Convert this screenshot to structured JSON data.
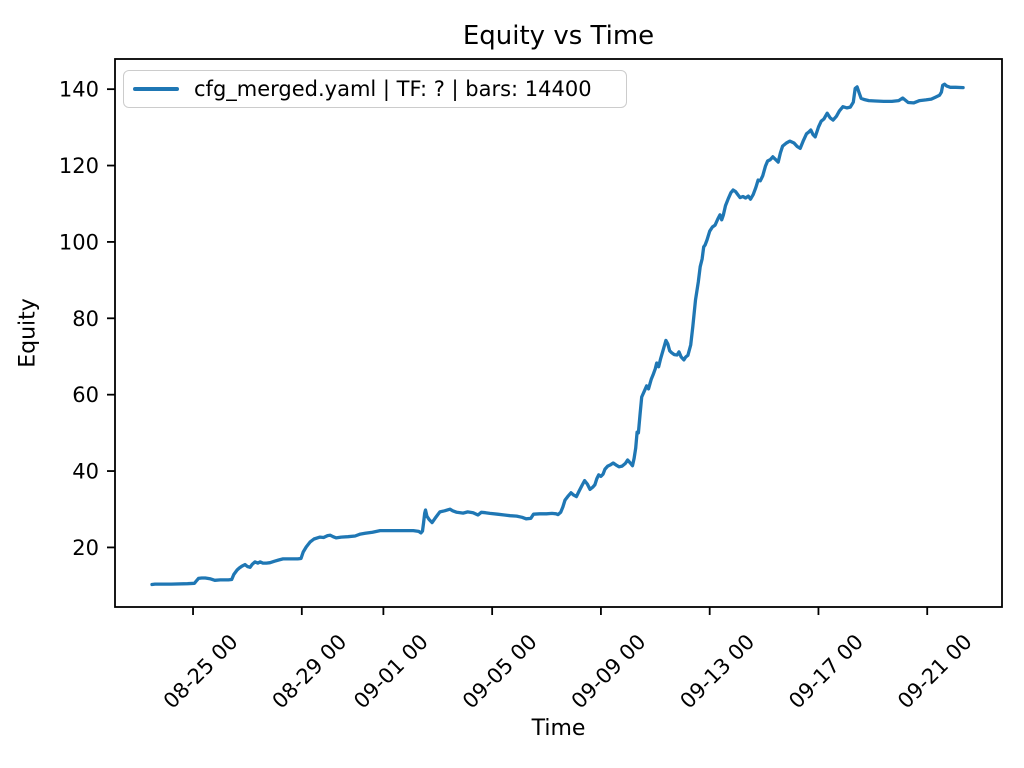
{
  "chart_data": {
    "type": "line",
    "title": "Equity vs Time",
    "xlabel": "Time",
    "ylabel": "Equity",
    "grid": false,
    "legend_position": "upper left",
    "x_unit": "days since 08-23 00:00",
    "xlim_days": [
      -0.87,
      31.75
    ],
    "ylim": [
      4.4,
      147.9
    ],
    "y_ticks": [
      20,
      40,
      60,
      80,
      100,
      120,
      140
    ],
    "x_ticks": [
      {
        "day": 2,
        "label": "08-25 00"
      },
      {
        "day": 6,
        "label": "08-29 00"
      },
      {
        "day": 9,
        "label": "09-01 00"
      },
      {
        "day": 13,
        "label": "09-05 00"
      },
      {
        "day": 17,
        "label": "09-09 00"
      },
      {
        "day": 21,
        "label": "09-13 00"
      },
      {
        "day": 25,
        "label": "09-17 00"
      },
      {
        "day": 29,
        "label": "09-21 00"
      }
    ],
    "series": [
      {
        "name": "cfg_merged.yaml | TF: ? | bars: 14400",
        "color": "#1f77b4",
        "points": [
          [
            0.49,
            10.3
          ],
          [
            0.6,
            10.4
          ],
          [
            1.2,
            10.4
          ],
          [
            1.8,
            10.5
          ],
          [
            2.05,
            10.6
          ],
          [
            2.12,
            11.2
          ],
          [
            2.2,
            11.9
          ],
          [
            2.32,
            12.0
          ],
          [
            2.45,
            12.0
          ],
          [
            2.62,
            11.8
          ],
          [
            2.8,
            11.4
          ],
          [
            3.0,
            11.5
          ],
          [
            3.3,
            11.5
          ],
          [
            3.42,
            11.6
          ],
          [
            3.5,
            12.9
          ],
          [
            3.62,
            14.1
          ],
          [
            3.7,
            14.6
          ],
          [
            3.8,
            15.1
          ],
          [
            3.91,
            15.5
          ],
          [
            4.0,
            15.0
          ],
          [
            4.1,
            14.8
          ],
          [
            4.18,
            15.6
          ],
          [
            4.28,
            16.2
          ],
          [
            4.38,
            15.9
          ],
          [
            4.47,
            16.2
          ],
          [
            4.57,
            15.9
          ],
          [
            4.7,
            15.9
          ],
          [
            4.83,
            16.0
          ],
          [
            5.0,
            16.4
          ],
          [
            5.15,
            16.7
          ],
          [
            5.31,
            17.0
          ],
          [
            5.6,
            17.0
          ],
          [
            5.85,
            17.0
          ],
          [
            5.97,
            17.1
          ],
          [
            6.05,
            18.8
          ],
          [
            6.16,
            20.1
          ],
          [
            6.3,
            21.4
          ],
          [
            6.45,
            22.2
          ],
          [
            6.67,
            22.7
          ],
          [
            6.8,
            22.6
          ],
          [
            6.95,
            23.1
          ],
          [
            7.04,
            23.2
          ],
          [
            7.15,
            22.8
          ],
          [
            7.26,
            22.5
          ],
          [
            7.45,
            22.7
          ],
          [
            7.7,
            22.8
          ],
          [
            7.96,
            23.0
          ],
          [
            8.15,
            23.5
          ],
          [
            8.33,
            23.7
          ],
          [
            8.6,
            24.0
          ],
          [
            8.88,
            24.4
          ],
          [
            9.3,
            24.4
          ],
          [
            9.7,
            24.4
          ],
          [
            10.1,
            24.4
          ],
          [
            10.3,
            24.2
          ],
          [
            10.38,
            23.8
          ],
          [
            10.44,
            24.3
          ],
          [
            10.48,
            26.5
          ],
          [
            10.52,
            29.0
          ],
          [
            10.55,
            29.8
          ],
          [
            10.6,
            28.2
          ],
          [
            10.68,
            27.3
          ],
          [
            10.79,
            26.5
          ],
          [
            10.9,
            27.6
          ],
          [
            11.0,
            28.6
          ],
          [
            11.08,
            29.3
          ],
          [
            11.25,
            29.6
          ],
          [
            11.45,
            30.0
          ],
          [
            11.55,
            29.6
          ],
          [
            11.7,
            29.2
          ],
          [
            11.93,
            29.0
          ],
          [
            12.1,
            29.3
          ],
          [
            12.3,
            29.1
          ],
          [
            12.48,
            28.5
          ],
          [
            12.6,
            29.2
          ],
          [
            12.75,
            29.1
          ],
          [
            12.92,
            28.9
          ],
          [
            13.2,
            28.7
          ],
          [
            13.45,
            28.5
          ],
          [
            13.66,
            28.3
          ],
          [
            13.9,
            28.2
          ],
          [
            14.1,
            27.9
          ],
          [
            14.25,
            27.5
          ],
          [
            14.42,
            27.6
          ],
          [
            14.52,
            28.7
          ],
          [
            14.75,
            28.8
          ],
          [
            15.0,
            28.8
          ],
          [
            15.2,
            28.9
          ],
          [
            15.35,
            28.8
          ],
          [
            15.42,
            28.6
          ],
          [
            15.52,
            29.2
          ],
          [
            15.6,
            30.6
          ],
          [
            15.68,
            32.4
          ],
          [
            15.78,
            33.3
          ],
          [
            15.9,
            34.3
          ],
          [
            16.0,
            33.7
          ],
          [
            16.1,
            33.3
          ],
          [
            16.2,
            34.8
          ],
          [
            16.3,
            36.2
          ],
          [
            16.4,
            37.5
          ],
          [
            16.5,
            36.6
          ],
          [
            16.6,
            35.2
          ],
          [
            16.7,
            35.8
          ],
          [
            16.78,
            36.4
          ],
          [
            16.85,
            38.0
          ],
          [
            16.92,
            39.0
          ],
          [
            17.0,
            38.6
          ],
          [
            17.08,
            39.2
          ],
          [
            17.15,
            40.5
          ],
          [
            17.25,
            41.3
          ],
          [
            17.35,
            41.6
          ],
          [
            17.45,
            42.1
          ],
          [
            17.55,
            41.6
          ],
          [
            17.67,
            41.1
          ],
          [
            17.78,
            41.3
          ],
          [
            17.9,
            42.0
          ],
          [
            17.98,
            42.9
          ],
          [
            18.08,
            42.1
          ],
          [
            18.16,
            41.4
          ],
          [
            18.22,
            43.3
          ],
          [
            18.28,
            46.0
          ],
          [
            18.33,
            50.2
          ],
          [
            18.38,
            50.0
          ],
          [
            18.44,
            55.0
          ],
          [
            18.5,
            59.4
          ],
          [
            18.6,
            61.0
          ],
          [
            18.68,
            62.3
          ],
          [
            18.75,
            61.5
          ],
          [
            18.85,
            64.0
          ],
          [
            18.92,
            65.2
          ],
          [
            19.0,
            66.8
          ],
          [
            19.05,
            68.3
          ],
          [
            19.12,
            67.3
          ],
          [
            19.2,
            69.5
          ],
          [
            19.3,
            72.0
          ],
          [
            19.39,
            74.2
          ],
          [
            19.46,
            73.3
          ],
          [
            19.53,
            71.5
          ],
          [
            19.6,
            71.0
          ],
          [
            19.7,
            70.5
          ],
          [
            19.8,
            70.4
          ],
          [
            19.87,
            71.2
          ],
          [
            19.95,
            69.9
          ],
          [
            20.05,
            69.1
          ],
          [
            20.12,
            69.9
          ],
          [
            20.2,
            70.3
          ],
          [
            20.3,
            73.0
          ],
          [
            20.38,
            77.8
          ],
          [
            20.48,
            84.8
          ],
          [
            20.58,
            89.5
          ],
          [
            20.65,
            93.5
          ],
          [
            20.72,
            95.5
          ],
          [
            20.78,
            98.7
          ],
          [
            20.83,
            99.2
          ],
          [
            20.9,
            100.5
          ],
          [
            21.0,
            102.8
          ],
          [
            21.1,
            103.9
          ],
          [
            21.2,
            104.4
          ],
          [
            21.3,
            106.0
          ],
          [
            21.38,
            107.1
          ],
          [
            21.44,
            105.8
          ],
          [
            21.5,
            107.0
          ],
          [
            21.58,
            109.5
          ],
          [
            21.68,
            111.3
          ],
          [
            21.78,
            112.9
          ],
          [
            21.86,
            113.6
          ],
          [
            21.95,
            113.2
          ],
          [
            22.04,
            112.3
          ],
          [
            22.12,
            111.6
          ],
          [
            22.22,
            111.9
          ],
          [
            22.32,
            111.5
          ],
          [
            22.42,
            112.0
          ],
          [
            22.5,
            111.2
          ],
          [
            22.6,
            112.4
          ],
          [
            22.7,
            114.3
          ],
          [
            22.78,
            116.2
          ],
          [
            22.86,
            116.0
          ],
          [
            22.95,
            117.3
          ],
          [
            23.05,
            119.8
          ],
          [
            23.13,
            121.2
          ],
          [
            23.22,
            121.5
          ],
          [
            23.32,
            122.3
          ],
          [
            23.42,
            121.6
          ],
          [
            23.52,
            120.9
          ],
          [
            23.6,
            123.3
          ],
          [
            23.68,
            125.1
          ],
          [
            23.82,
            125.9
          ],
          [
            23.95,
            126.4
          ],
          [
            24.1,
            125.9
          ],
          [
            24.22,
            125.0
          ],
          [
            24.33,
            124.5
          ],
          [
            24.45,
            126.6
          ],
          [
            24.56,
            128.3
          ],
          [
            24.65,
            128.8
          ],
          [
            24.72,
            129.3
          ],
          [
            24.8,
            128.1
          ],
          [
            24.88,
            127.5
          ],
          [
            25.0,
            130.1
          ],
          [
            25.1,
            131.6
          ],
          [
            25.2,
            132.2
          ],
          [
            25.32,
            133.7
          ],
          [
            25.43,
            132.5
          ],
          [
            25.54,
            131.9
          ],
          [
            25.66,
            132.9
          ],
          [
            25.77,
            134.3
          ],
          [
            25.9,
            135.4
          ],
          [
            26.05,
            135.1
          ],
          [
            26.17,
            135.3
          ],
          [
            26.28,
            136.6
          ],
          [
            26.35,
            140.2
          ],
          [
            26.42,
            140.6
          ],
          [
            26.5,
            139.0
          ],
          [
            26.57,
            137.6
          ],
          [
            26.68,
            137.3
          ],
          [
            26.85,
            137.0
          ],
          [
            27.1,
            136.9
          ],
          [
            27.4,
            136.8
          ],
          [
            27.7,
            136.8
          ],
          [
            27.95,
            137.0
          ],
          [
            28.1,
            137.7
          ],
          [
            28.3,
            136.5
          ],
          [
            28.5,
            136.4
          ],
          [
            28.72,
            137.0
          ],
          [
            28.95,
            137.2
          ],
          [
            29.15,
            137.4
          ],
          [
            29.3,
            137.9
          ],
          [
            29.45,
            138.4
          ],
          [
            29.52,
            139.2
          ],
          [
            29.57,
            141.0
          ],
          [
            29.64,
            141.3
          ],
          [
            29.72,
            140.8
          ],
          [
            29.85,
            140.5
          ],
          [
            30.05,
            140.5
          ],
          [
            30.32,
            140.4
          ]
        ]
      }
    ]
  },
  "legend": {
    "label": "cfg_merged.yaml | TF: ? | bars: 14400"
  },
  "colors": {
    "line": "#1f77b4",
    "axis": "#000000",
    "legend_border": "#cccccc",
    "background": "#ffffff"
  }
}
